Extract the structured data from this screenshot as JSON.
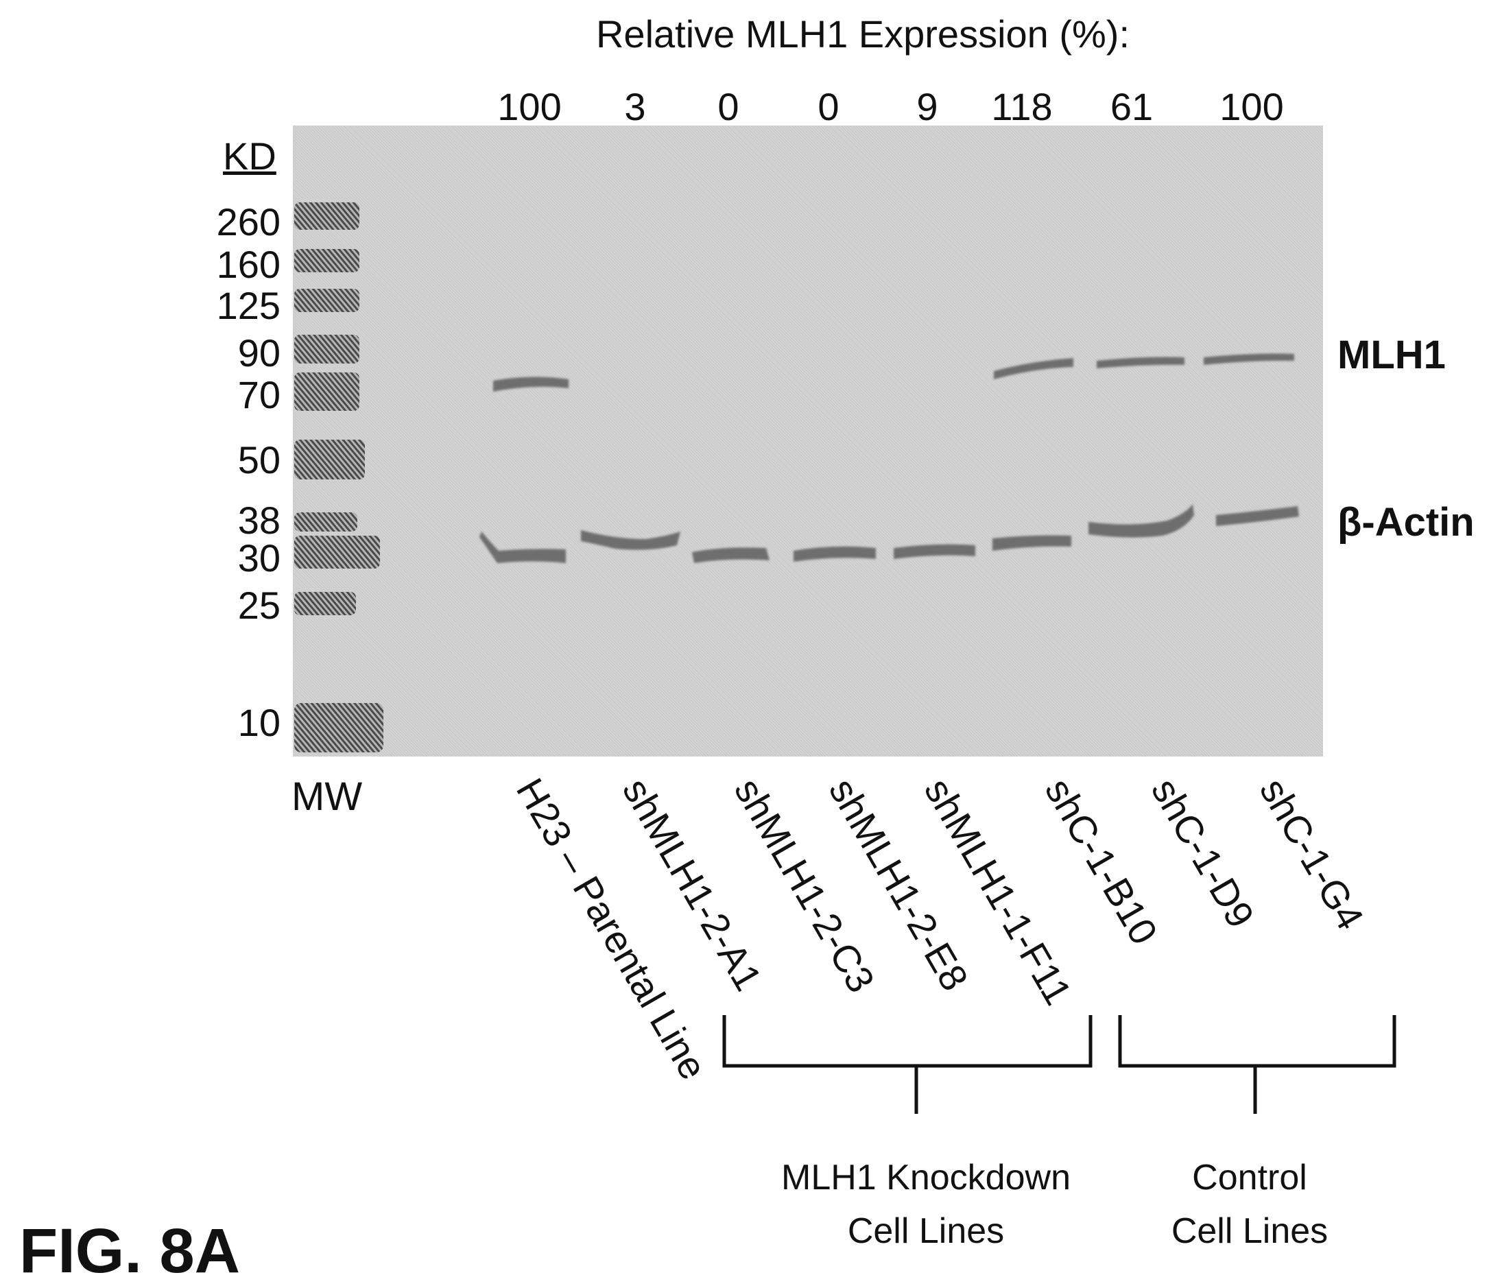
{
  "header": {
    "title": "Relative MLH1 Expression (%):"
  },
  "lanes": [
    {
      "label": "H23 – Parental Line",
      "expression": "100"
    },
    {
      "label": "shMLH1-2-A1",
      "expression": "3"
    },
    {
      "label": "shMLH1-2-C3",
      "expression": "0"
    },
    {
      "label": "shMLH1-2-E8",
      "expression": "0"
    },
    {
      "label": "shMLH1-1-F11",
      "expression": "9"
    },
    {
      "label": "shC-1-B10",
      "expression": "118"
    },
    {
      "label": "shC-1-D9",
      "expression": "61"
    },
    {
      "label": "shC-1-G4",
      "expression": "100"
    }
  ],
  "marker": {
    "unit_label": "KD",
    "lane_label": "MW",
    "weights": [
      "260",
      "160",
      "125",
      "90",
      "70",
      "50",
      "38",
      "30",
      "25",
      "10"
    ]
  },
  "bands": {
    "mlh1": "MLH1",
    "actin": "β-Actin"
  },
  "groups": {
    "knockdown": {
      "line1": "MLH1 Knockdown",
      "line2": "Cell Lines"
    },
    "control": {
      "line1": "Control",
      "line2": "Cell Lines"
    }
  },
  "figure_label": "FIG. 8A",
  "colors": {
    "gel_background": "#d3d3d3",
    "band": "#6e6e6e"
  }
}
